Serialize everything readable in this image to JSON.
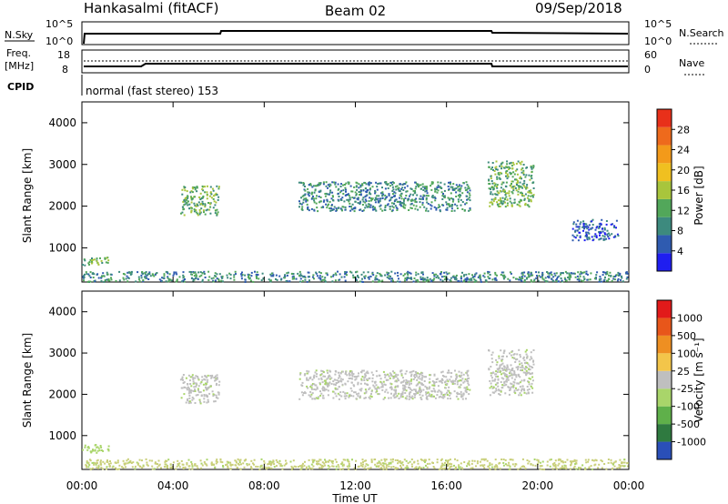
{
  "header": {
    "station": "Hankasalmi (fitACF)",
    "beam": "Beam 02",
    "date": "09/Sep/2018"
  },
  "status_panels": {
    "nsky_label": "N.Sky",
    "nsearch_label": "N.Search",
    "freq_label_1": "Freq.",
    "freq_label_2": "[MHz]",
    "nave_label": "Nave",
    "cpid_label": "CPID",
    "cpid_text": "normal (fast stereo) 153",
    "noise_ticks": [
      "10^5",
      "10^0"
    ],
    "freq_left_ticks": [
      "18",
      "8"
    ],
    "freq_right_ticks": [
      "60",
      "0"
    ]
  },
  "chart_data": [
    {
      "type": "heatmap",
      "title": "",
      "xlabel": "Time UT",
      "ylabel": "Slant Range [km]",
      "x_ticks": [
        "00:00",
        "04:00",
        "08:00",
        "12:00",
        "16:00",
        "20:00",
        "00:00"
      ],
      "y_ticks": [
        "1000",
        "2000",
        "3000",
        "4000"
      ],
      "xlim_hours": [
        0,
        24
      ],
      "ylim_km": [
        180,
        4500
      ],
      "colorbar": {
        "label": "Power [dB]",
        "ticks": [
          "4",
          "8",
          "12",
          "16",
          "20",
          "24",
          "28"
        ],
        "colors": [
          "#1f1ef0",
          "#2f5bb0",
          "#3d8a7e",
          "#52a75a",
          "#a8c53c",
          "#f0c020",
          "#f39a1a",
          "#ee6a1c",
          "#e8301a"
        ]
      },
      "echo_regions": [
        {
          "name": "sea scatter near range",
          "t0": 0.0,
          "t1": 1.2,
          "r0": 600,
          "r1": 800,
          "level": 3
        },
        {
          "name": "ground scatter",
          "t0": 0.0,
          "t1": 24.0,
          "r0": 200,
          "r1": 450,
          "level": 2
        },
        {
          "name": "dawn echoes",
          "t0": 4.3,
          "t1": 6.0,
          "r0": 1800,
          "r1": 2500,
          "level": 3
        },
        {
          "name": "main band",
          "t0": 9.5,
          "t1": 17.0,
          "r0": 1900,
          "r1": 2600,
          "level": 2
        },
        {
          "name": "evening band",
          "t0": 17.8,
          "t1": 19.8,
          "r0": 2000,
          "r1": 3100,
          "level": 3
        },
        {
          "name": "late echoes",
          "t0": 21.5,
          "t1": 23.5,
          "r0": 1200,
          "r1": 1700,
          "level": 1
        }
      ]
    },
    {
      "type": "heatmap",
      "title": "",
      "xlabel": "Time UT",
      "ylabel": "Slant Range [km]",
      "x_ticks": [
        "00:00",
        "04:00",
        "08:00",
        "12:00",
        "16:00",
        "20:00",
        "00:00"
      ],
      "y_ticks": [
        "1000",
        "2000",
        "3000",
        "4000"
      ],
      "xlim_hours": [
        0,
        24
      ],
      "ylim_km": [
        180,
        4500
      ],
      "colorbar": {
        "label": "Velocity [m s⁻¹]",
        "ticks": [
          "1000",
          "500",
          "100",
          "25",
          "-25",
          "-100",
          "-500",
          "-1000"
        ],
        "colors": [
          "#2a4fb8",
          "#2f7a40",
          "#5fb04a",
          "#a9d56a",
          "#bfbfbf",
          "#f3c54a",
          "#ee8f22",
          "#e8561a",
          "#e21a1a"
        ]
      },
      "echo_regions": [
        {
          "name": "near range",
          "t0": 0.0,
          "t1": 1.2,
          "r0": 600,
          "r1": 800,
          "color": "#a9d56a"
        },
        {
          "name": "ground scatter",
          "t0": 0.0,
          "t1": 24.0,
          "r0": 200,
          "r1": 450,
          "color": "#c9cf7a"
        },
        {
          "name": "dawn echoes",
          "t0": 4.3,
          "t1": 6.0,
          "r0": 1800,
          "r1": 2500,
          "color": "#bfbfbf"
        },
        {
          "name": "main band",
          "t0": 9.5,
          "t1": 17.0,
          "r0": 1900,
          "r1": 2600,
          "color": "#bfbfbf"
        },
        {
          "name": "evening band",
          "t0": 17.8,
          "t1": 19.8,
          "r0": 2000,
          "r1": 3100,
          "color": "#bfbfbf"
        }
      ]
    }
  ]
}
